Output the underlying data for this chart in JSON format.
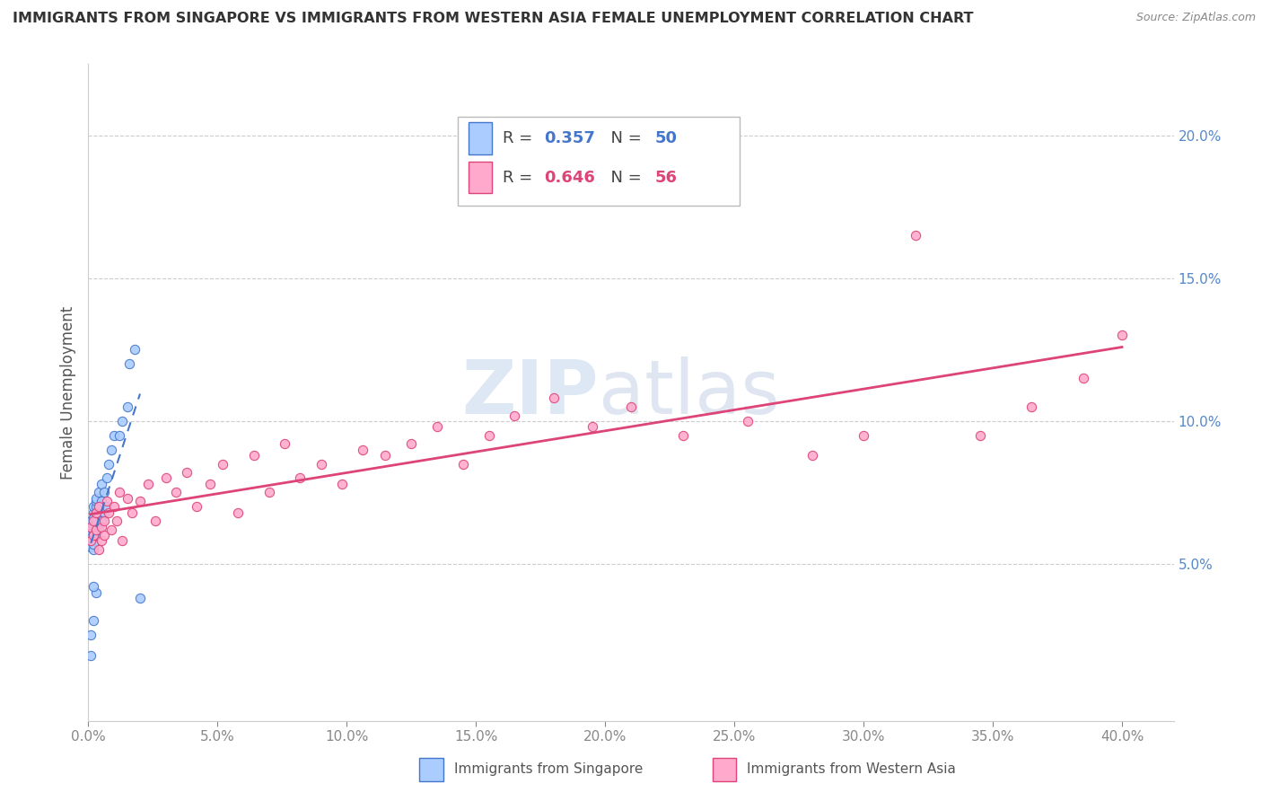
{
  "title": "IMMIGRANTS FROM SINGAPORE VS IMMIGRANTS FROM WESTERN ASIA FEMALE UNEMPLOYMENT CORRELATION CHART",
  "source": "Source: ZipAtlas.com",
  "ylabel": "Female Unemployment",
  "y_ticks": [
    0.05,
    0.1,
    0.15,
    0.2
  ],
  "y_tick_labels": [
    "5.0%",
    "10.0%",
    "15.0%",
    "20.0%"
  ],
  "x_ticks": [
    0.0,
    0.05,
    0.1,
    0.15,
    0.2,
    0.25,
    0.3,
    0.35,
    0.4
  ],
  "x_tick_labels": [
    "0.0%",
    "5.0%",
    "10.0%",
    "15.0%",
    "20.0%",
    "25.0%",
    "30.0%",
    "35.0%",
    "40.0%"
  ],
  "xlim": [
    0.0,
    0.42
  ],
  "ylim": [
    -0.005,
    0.225
  ],
  "legend1_label": "Immigrants from Singapore",
  "legend2_label": "Immigrants from Western Asia",
  "R1": 0.357,
  "N1": 50,
  "R2": 0.646,
  "N2": 56,
  "color_singapore": "#aaccff",
  "color_singapore_line": "#4477cc",
  "color_western_asia": "#ffaacc",
  "color_western_asia_line": "#dd4477",
  "watermark_zip": "ZIP",
  "watermark_atlas": "atlas",
  "background_color": "#ffffff",
  "grid_color": "#cccccc",
  "title_color": "#333333",
  "axis_tick_color": "#5588cc",
  "scatter_size": 55,
  "singapore_x": [
    0.001,
    0.001,
    0.001,
    0.001,
    0.001,
    0.001,
    0.001,
    0.001,
    0.001,
    0.001,
    0.002,
    0.002,
    0.002,
    0.002,
    0.002,
    0.002,
    0.002,
    0.002,
    0.002,
    0.003,
    0.003,
    0.003,
    0.003,
    0.003,
    0.003,
    0.004,
    0.004,
    0.004,
    0.004,
    0.005,
    0.005,
    0.005,
    0.006,
    0.006,
    0.007,
    0.007,
    0.008,
    0.009,
    0.01,
    0.012,
    0.013,
    0.015,
    0.016,
    0.018,
    0.02,
    0.003,
    0.002,
    0.001,
    0.001,
    0.002
  ],
  "singapore_y": [
    0.06,
    0.062,
    0.058,
    0.063,
    0.061,
    0.057,
    0.059,
    0.064,
    0.056,
    0.065,
    0.062,
    0.068,
    0.055,
    0.06,
    0.07,
    0.063,
    0.057,
    0.066,
    0.061,
    0.07,
    0.065,
    0.072,
    0.06,
    0.068,
    0.073,
    0.068,
    0.075,
    0.062,
    0.07,
    0.072,
    0.065,
    0.078,
    0.075,
    0.068,
    0.08,
    0.07,
    0.085,
    0.09,
    0.095,
    0.095,
    0.1,
    0.105,
    0.12,
    0.125,
    0.038,
    0.04,
    0.042,
    0.025,
    0.018,
    0.03
  ],
  "western_asia_x": [
    0.001,
    0.001,
    0.002,
    0.002,
    0.003,
    0.003,
    0.004,
    0.004,
    0.005,
    0.005,
    0.006,
    0.006,
    0.007,
    0.008,
    0.009,
    0.01,
    0.011,
    0.012,
    0.013,
    0.015,
    0.017,
    0.02,
    0.023,
    0.026,
    0.03,
    0.034,
    0.038,
    0.042,
    0.047,
    0.052,
    0.058,
    0.064,
    0.07,
    0.076,
    0.082,
    0.09,
    0.098,
    0.106,
    0.115,
    0.125,
    0.135,
    0.145,
    0.155,
    0.165,
    0.18,
    0.195,
    0.21,
    0.23,
    0.255,
    0.28,
    0.3,
    0.32,
    0.345,
    0.365,
    0.385,
    0.4
  ],
  "western_asia_y": [
    0.058,
    0.063,
    0.06,
    0.065,
    0.062,
    0.068,
    0.055,
    0.07,
    0.063,
    0.058,
    0.065,
    0.06,
    0.072,
    0.068,
    0.062,
    0.07,
    0.065,
    0.075,
    0.058,
    0.073,
    0.068,
    0.072,
    0.078,
    0.065,
    0.08,
    0.075,
    0.082,
    0.07,
    0.078,
    0.085,
    0.068,
    0.088,
    0.075,
    0.092,
    0.08,
    0.085,
    0.078,
    0.09,
    0.088,
    0.092,
    0.098,
    0.085,
    0.095,
    0.102,
    0.108,
    0.098,
    0.105,
    0.095,
    0.1,
    0.088,
    0.095,
    0.165,
    0.095,
    0.105,
    0.115,
    0.13
  ]
}
